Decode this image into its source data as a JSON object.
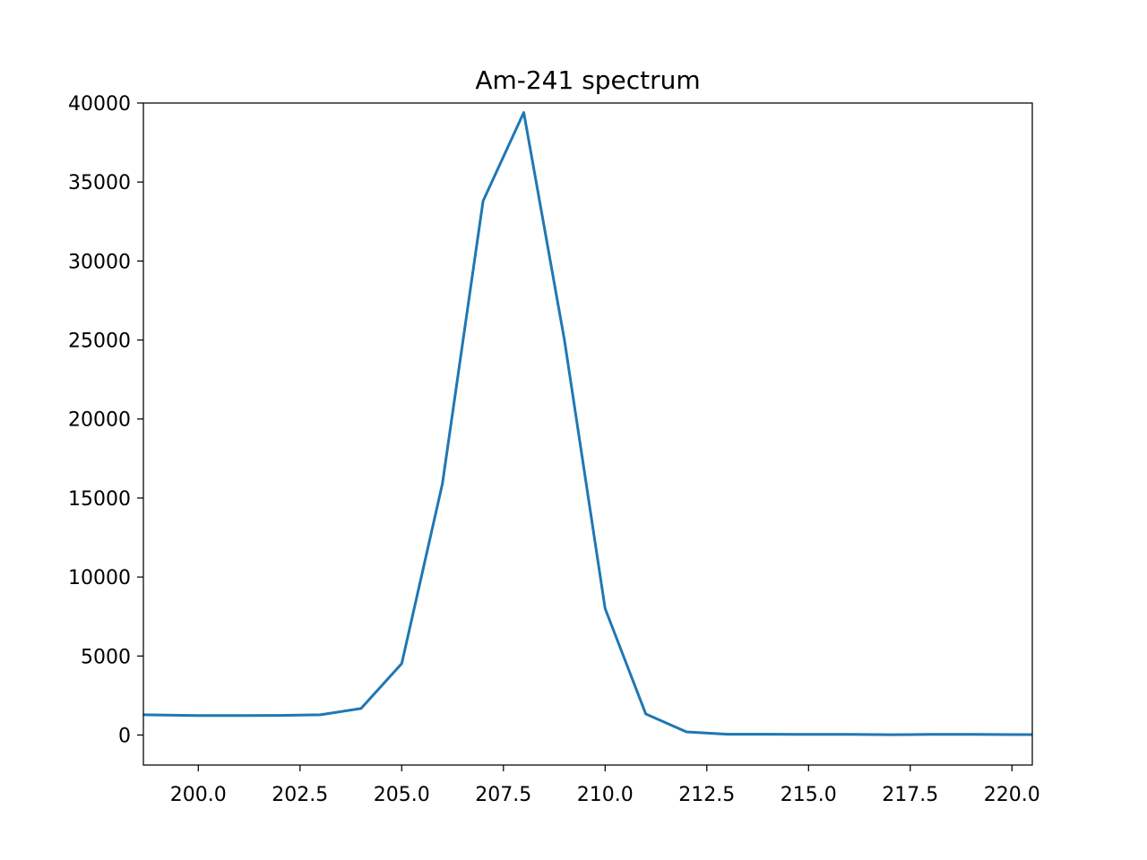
{
  "chart_data": {
    "type": "line",
    "title": "Am-241 spectrum",
    "xlabel": "",
    "ylabel": "",
    "xlim": [
      198.65,
      220.5
    ],
    "ylim": [
      -1900,
      40000
    ],
    "x_ticks": [
      200.0,
      202.5,
      205.0,
      207.5,
      210.0,
      212.5,
      215.0,
      217.5,
      220.0
    ],
    "x_tick_labels": [
      "200.0",
      "202.5",
      "205.0",
      "207.5",
      "210.0",
      "212.5",
      "215.0",
      "217.5",
      "220.0"
    ],
    "y_ticks": [
      0,
      5000,
      10000,
      15000,
      20000,
      25000,
      30000,
      35000,
      40000
    ],
    "y_tick_labels": [
      "0",
      "5000",
      "10000",
      "15000",
      "20000",
      "25000",
      "30000",
      "35000",
      "40000"
    ],
    "grid": false,
    "series": [
      {
        "color": "#1f77b4",
        "x": [
          198,
          199,
          200,
          201,
          202,
          203,
          204,
          205,
          206,
          207,
          208,
          209,
          210,
          211,
          212,
          213,
          214,
          215,
          216,
          217,
          218,
          219,
          220,
          221
        ],
        "y": [
          1300,
          1270,
          1230,
          1230,
          1240,
          1280,
          1680,
          4520,
          15900,
          33800,
          39400,
          25000,
          8000,
          1330,
          200,
          50,
          50,
          40,
          40,
          20,
          40,
          40,
          30,
          30
        ]
      }
    ]
  }
}
